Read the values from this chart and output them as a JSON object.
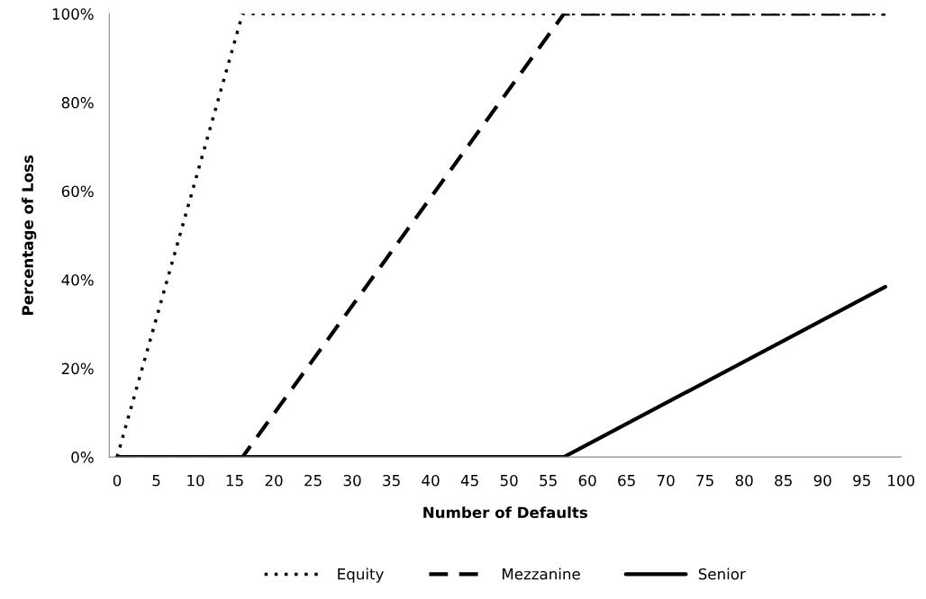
{
  "chart_data": {
    "type": "line",
    "xlabel": "Number of Defaults",
    "ylabel": "Percentage of Loss",
    "xlim": [
      -1,
      100
    ],
    "xticks": [
      0,
      5,
      10,
      15,
      20,
      25,
      30,
      35,
      40,
      45,
      50,
      55,
      60,
      65,
      70,
      75,
      80,
      85,
      90,
      95,
      100
    ],
    "ylim": [
      0,
      100
    ],
    "yticks": [
      {
        "value": 0,
        "label": "0%"
      },
      {
        "value": 20,
        "label": "20%"
      },
      {
        "value": 40,
        "label": "40%"
      },
      {
        "value": 60,
        "label": "60%"
      },
      {
        "value": 80,
        "label": "80%"
      },
      {
        "value": 100,
        "label": "100%"
      }
    ],
    "grid": false,
    "legend": "bottom",
    "marker": "none",
    "series": [
      {
        "name": "Equity",
        "color": "#000000",
        "line_style": "dotted",
        "x": [
          0,
          16,
          98
        ],
        "values": [
          0,
          100,
          100
        ]
      },
      {
        "name": "Mezzanine",
        "color": "#000000",
        "line_style": "dashed",
        "x": [
          0,
          16,
          57,
          98
        ],
        "values": [
          0,
          0,
          100,
          100
        ]
      },
      {
        "name": "Senior",
        "color": "#000000",
        "line_style": "solid",
        "x": [
          0,
          57,
          98
        ],
        "values": [
          0,
          0,
          38.4
        ]
      }
    ]
  }
}
